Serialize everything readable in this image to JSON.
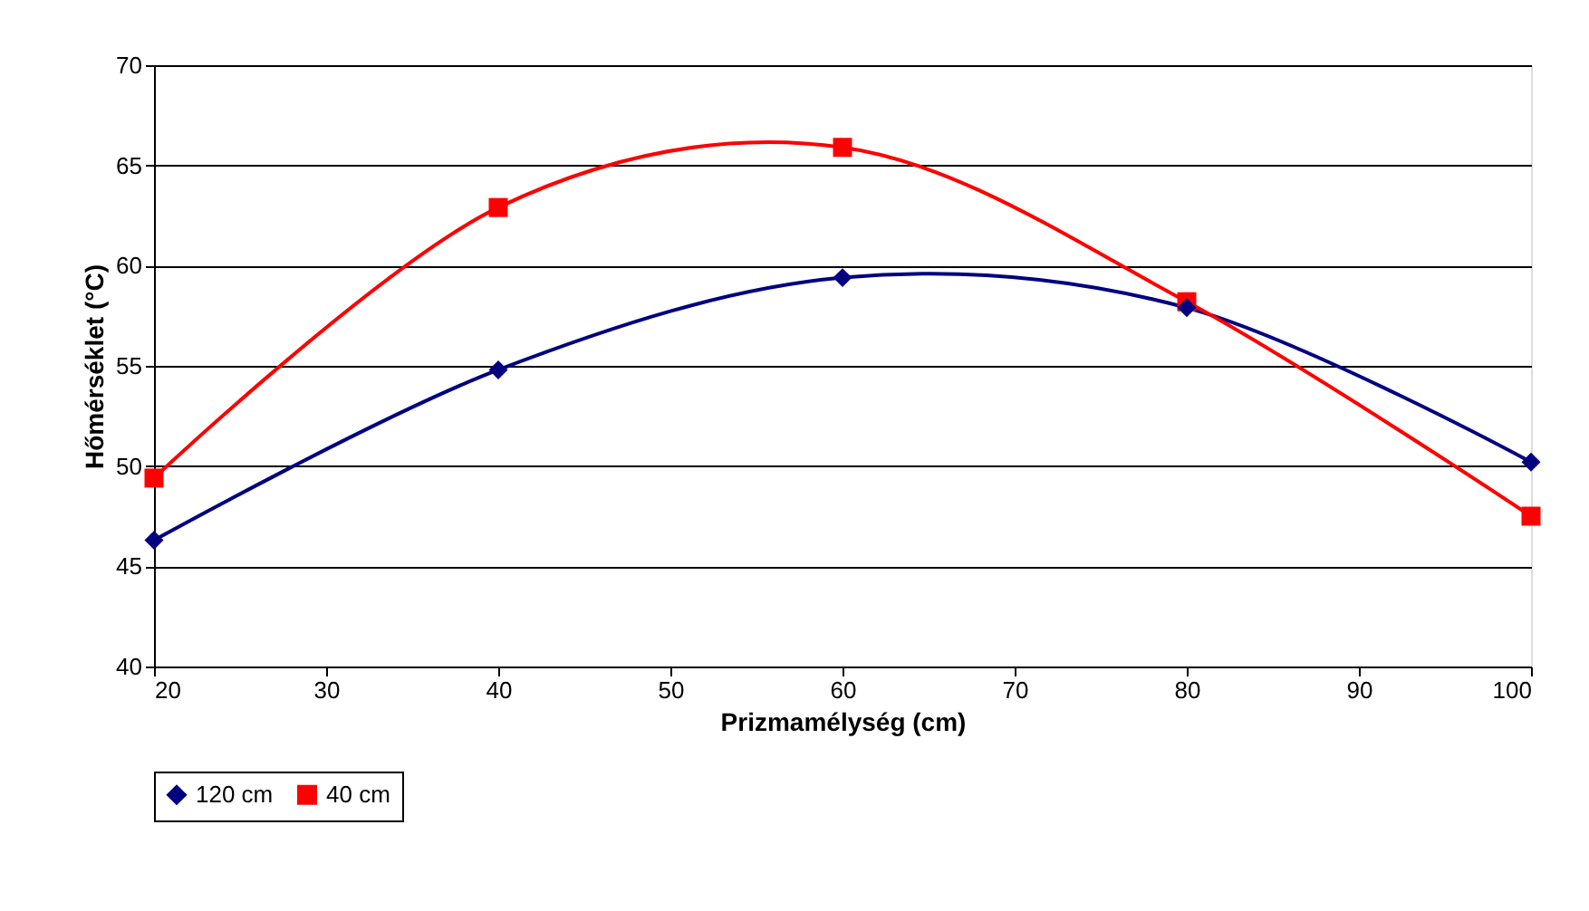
{
  "chart_data": {
    "type": "line",
    "xlabel": "Prizmamélység (cm)",
    "ylabel": "Hőmérséklet (°C)",
    "x": [
      20,
      40,
      60,
      80,
      100
    ],
    "series": [
      {
        "name": "120 cm",
        "color": "#000080",
        "marker": "diamond",
        "values": [
          46.3,
          54.8,
          59.4,
          57.9,
          50.2
        ]
      },
      {
        "name": "40 cm",
        "color": "#ff0000",
        "marker": "square",
        "values": [
          49.4,
          62.9,
          65.9,
          58.2,
          47.5
        ]
      }
    ],
    "xlim": [
      20,
      100
    ],
    "xticks": [
      20,
      30,
      40,
      50,
      60,
      70,
      80,
      90,
      100
    ],
    "ylim": [
      40,
      70
    ],
    "yticks": [
      40,
      45,
      50,
      55,
      60,
      65,
      70
    ],
    "grid": "y",
    "legend": "bottom",
    "line_style": "solid"
  }
}
